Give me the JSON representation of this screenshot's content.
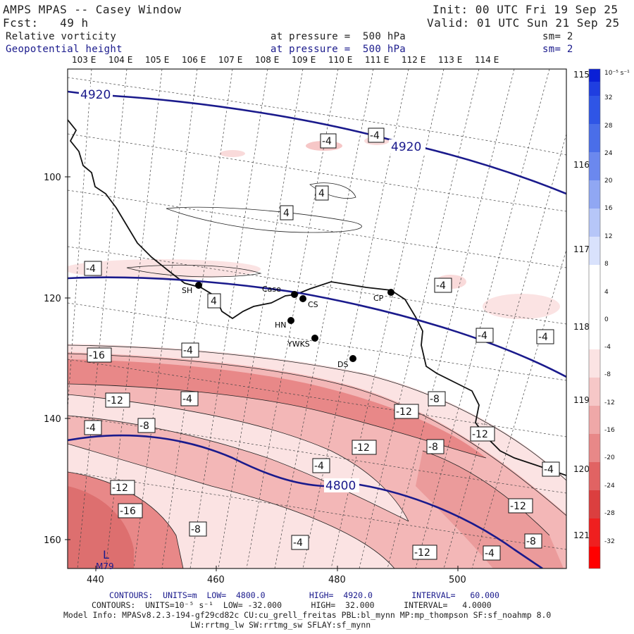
{
  "header": {
    "title": "AMPS MPAS -- Casey Window",
    "init": "Init: 00 UTC Fri 19 Sep 25",
    "fcst": "Fcst:   49 h",
    "valid": "Valid: 01 UTC Sun 21 Sep 25",
    "field1": "Relative vorticity",
    "field1_level": "at pressure =  500 hPa",
    "field1_sm": "sm= 2",
    "field2": "Geopotential height",
    "field2_level": "at pressure =  500 hPa",
    "field2_sm": "sm= 2"
  },
  "axes": {
    "top_lon": [
      "103 E",
      "104 E",
      "105 E",
      "106 E",
      "107 E",
      "108 E",
      "109 E",
      "110 E",
      "111 E",
      "112 E",
      "113 E",
      "114 E"
    ],
    "right_lon": [
      "115 E",
      "116 E",
      "117 E",
      "118 E",
      "119 E",
      "120 E",
      "121 E"
    ],
    "left_y": [
      "100",
      "120",
      "140",
      "160"
    ],
    "bottom_x": [
      "440",
      "460",
      "480",
      "500"
    ]
  },
  "colorbar": {
    "unit": "10⁻⁵ s⁻¹",
    "labels": [
      "32",
      "28",
      "24",
      "20",
      "16",
      "12",
      "8",
      "4",
      "0",
      "-4",
      "-8",
      "-12",
      "-16",
      "-20",
      "-24",
      "-28",
      "-32"
    ]
  },
  "stations": [
    "SH",
    "Case",
    "CS",
    "CP",
    "HN",
    "YWKS",
    "DS"
  ],
  "height_labels": [
    "4920",
    "4920",
    "4800"
  ],
  "vort_labels": [
    "-4",
    "-4",
    "4",
    "4",
    "-4",
    "-4",
    "4",
    "-4",
    "-4",
    "-4",
    "-4",
    "-16",
    "-12",
    "-4",
    "-12",
    "-8",
    "-4",
    "-8",
    "-12",
    "-4",
    "-12",
    "-8",
    "-12",
    "-16",
    "-8",
    "-4",
    "-12",
    "-8",
    "-12",
    "-4"
  ],
  "map_marks": [
    "L",
    "M79"
  ],
  "footer": {
    "contours1": "CONTOURS:  UNITS=m  LOW=  4800.0         HIGH=  4920.0        INTERVAL=   60.000",
    "contours2": "CONTOURS:  UNITS=10⁻⁵ s⁻¹  LOW= -32.000      HIGH=  32.000      INTERVAL=   4.0000",
    "model1": "Model Info: MPASv8.2.3-194-gf29cd82c CU:cu_grell_freitas PBL:bl_mynn MP:mp_thompson SF:sf_noahmp 8.0",
    "model2": "LW:rrtmg_lw SW:rrtmg_sw SFLAY:sf_mynn"
  },
  "colors": {
    "navy": "#1a1a8c",
    "pink_light": "#f9dada",
    "pink_mid": "#f3b0b0",
    "pink_dark": "#e57f7f",
    "coast": "#111111"
  }
}
